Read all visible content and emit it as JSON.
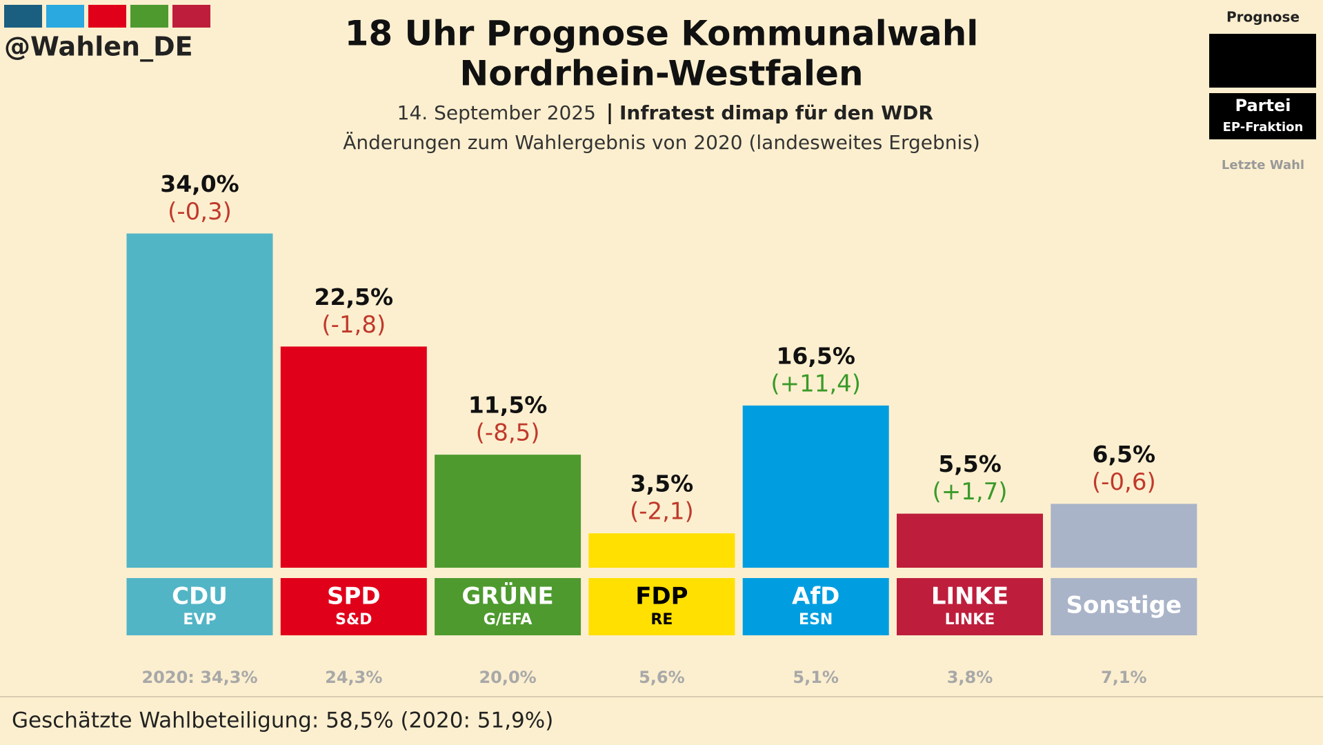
{
  "header": {
    "handle": "@Wahlen_DE",
    "date": "14. September 2025",
    "source": "Infratest dimap für den WDR",
    "subtitle": "Änderungen zum Wahlergebnis von 2020 (landesweites Ergebnis)"
  },
  "legend": {
    "top": "Prognose",
    "party": "Partei",
    "group": "EP-Fraktion",
    "last": "Letzte Wahl"
  },
  "chart_data": {
    "type": "bar",
    "title": [
      "18 Uhr Prognose Kommunalwahl",
      "Nordrhein-Westfalen"
    ],
    "categories": [
      "CDU",
      "SPD",
      "GRÜNE",
      "FDP",
      "AfD",
      "LINKE",
      "Sonstige"
    ],
    "groups": [
      "EVP",
      "S&D",
      "G/EFA",
      "RE",
      "ESN",
      "LINKE",
      null
    ],
    "values": [
      34.0,
      22.5,
      11.5,
      3.5,
      16.5,
      5.5,
      6.5
    ],
    "value_labels": [
      "34,0%",
      "22,5%",
      "11,5%",
      "3,5%",
      "16,5%",
      "5,5%",
      "6,5%"
    ],
    "changes": [
      -0.3,
      -1.8,
      -8.5,
      -2.1,
      11.4,
      1.7,
      -0.6
    ],
    "change_labels": [
      "(-0,3)",
      "(-1,8)",
      "(-8,5)",
      "(-2,1)",
      "(+11,4)",
      "(+1,7)",
      "(-0,6)"
    ],
    "previous_labels": [
      "2020: 34,3%",
      "24,3%",
      "20,0%",
      "5,6%",
      "5,1%",
      "3,8%",
      "7,1%"
    ],
    "colors": [
      "#52b5c6",
      "#e0001a",
      "#4e9a2f",
      "#ffe000",
      "#009ee0",
      "#be1e3c",
      "#aab4c8"
    ],
    "label_colors": [
      "#ffffff",
      "#ffffff",
      "#ffffff",
      "#000000",
      "#ffffff",
      "#ffffff",
      "#ffffff"
    ]
  },
  "footer": "Geschätzte Wahlbeteiligung: 58,5% (2020: 51,9%)"
}
